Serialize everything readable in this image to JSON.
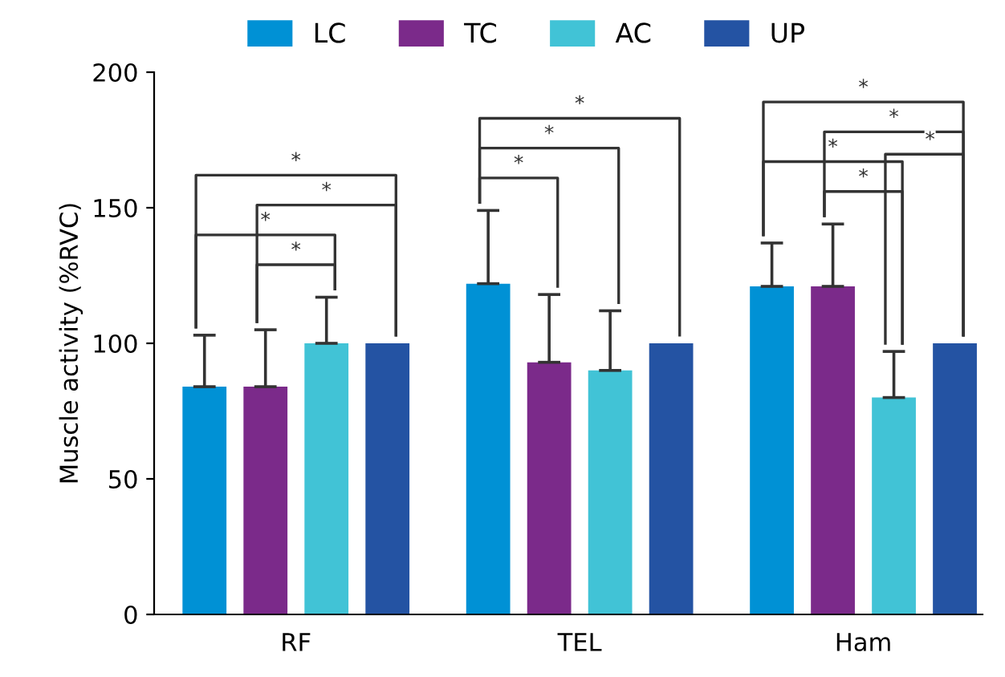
{
  "chart_data": {
    "type": "bar",
    "ylabel": "Muscle activity (%RVC)",
    "categories": [
      "RF",
      "TEL",
      "Ham"
    ],
    "series": [
      {
        "name": "LC",
        "color": "#0091d5",
        "values": [
          84,
          122,
          121
        ],
        "errors": [
          [
            84,
            103
          ],
          [
            122,
            149
          ],
          [
            121,
            137
          ]
        ]
      },
      {
        "name": "TC",
        "color": "#7b2a8a",
        "values": [
          84,
          93,
          121
        ],
        "errors": [
          [
            84,
            105
          ],
          [
            93,
            118
          ],
          [
            121,
            144
          ]
        ]
      },
      {
        "name": "AC",
        "color": "#41c3d6",
        "values": [
          100,
          90,
          80
        ],
        "errors": [
          [
            100,
            117
          ],
          [
            90,
            112
          ],
          [
            80,
            97
          ]
        ]
      },
      {
        "name": "UP",
        "color": "#2453a3",
        "values": [
          100,
          100,
          100
        ],
        "errors": [
          null,
          null,
          null
        ]
      }
    ],
    "ylim": [
      0,
      200
    ],
    "yticks": [
      0,
      50,
      100,
      150,
      200
    ],
    "grid": false,
    "legend": "top",
    "annotations": [
      "*",
      "*",
      "*",
      "*",
      "*",
      "*",
      "*",
      "*",
      "*",
      "*",
      "*",
      "*"
    ]
  }
}
